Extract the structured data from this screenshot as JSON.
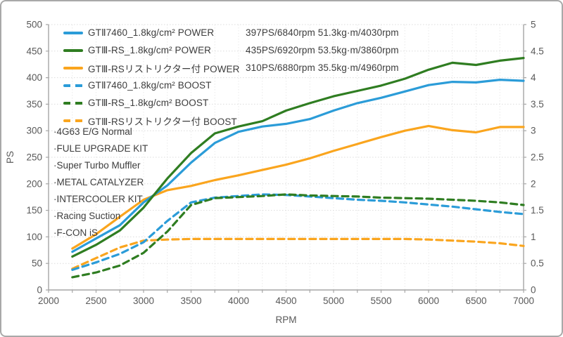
{
  "legend": {
    "items": [
      {
        "label": "GTⅡ7460_1.8kg/cm² POWER",
        "stats": "397PS/6840rpm 51.3kg·m/4030rpm",
        "color": "#2B9CD8",
        "style": "solid"
      },
      {
        "label": "GTⅢ-RS_1.8kg/cm² POWER",
        "stats": "435PS/6920rpm 53.5kg·m/3860rpm",
        "color": "#2F7D21",
        "style": "solid"
      },
      {
        "label": "GTⅢ-RSリストリクター付 POWER",
        "stats": "310PS/6880rpm 35.5kg·m/4960rpm",
        "color": "#FAA51E",
        "style": "solid"
      },
      {
        "label": "GTⅡ7460_1.8kg/cm² BOOST",
        "stats": "",
        "color": "#2B9CD8",
        "style": "dashed"
      },
      {
        "label": "GTⅢ-RS_1.8kg/cm² BOOST",
        "stats": "",
        "color": "#2F7D21",
        "style": "dashed"
      },
      {
        "label": "GTⅢ-RSリストリクター付 BOOST",
        "stats": "",
        "color": "#FAA51E",
        "style": "dashed"
      }
    ]
  },
  "annotations": {
    "items": [
      "·4G63 E/G Normal",
      "·FULE UPGRADE KIT",
      "·Super Turbo Muffler",
      "·METAL CATALYZER",
      "·INTERCOOLER KIT",
      "·Racing Suction",
      "·F-CON iS"
    ]
  },
  "chart_data": {
    "type": "line",
    "title": "",
    "xlabel": "RPM",
    "ylabel_left": "PS",
    "xlim": [
      2000,
      7000
    ],
    "x_tick_step": 500,
    "x_minor_step": 250,
    "ylim_left": [
      0,
      500
    ],
    "y_step_left": 50,
    "ylim_right": [
      0,
      5
    ],
    "y_step_right": 0.5,
    "grid": true,
    "legend_position": "top-left",
    "x": [
      2250,
      2500,
      2750,
      3000,
      3250,
      3500,
      3750,
      4000,
      4250,
      4500,
      4750,
      5000,
      5250,
      5500,
      5750,
      6000,
      6250,
      6500,
      6750,
      7000
    ],
    "series": [
      {
        "id": "gt2-7460-power",
        "name": "GTⅡ7460_1.8kg/cm² POWER",
        "axis": "left",
        "style": "solid",
        "color": "#FAA51E-placeholder",
        "values": []
      },
      {
        "id": "gt3rs-restrictor-power",
        "name": "GTⅢ-RSリストリクター付 POWER",
        "axis": "left",
        "style": "solid",
        "color": "#FAA51E",
        "values": [
          78,
          105,
          138,
          170,
          188,
          196,
          207,
          216,
          226,
          236,
          248,
          262,
          275,
          288,
          300,
          309,
          301,
          297,
          307,
          307
        ]
      },
      {
        "id": "gt2-7460-power-line",
        "name": "GTⅡ7460_1.8kg/cm² POWER",
        "axis": "left",
        "style": "solid",
        "color": "#2B9CD8",
        "values": [
          72,
          97,
          122,
          165,
          197,
          240,
          277,
          298,
          308,
          313,
          322,
          338,
          352,
          362,
          374,
          386,
          392,
          391,
          396,
          394
        ]
      },
      {
        "id": "gt3rs-power-line",
        "name": "GTⅢ-RS_1.8kg/cm² POWER",
        "axis": "left",
        "style": "solid",
        "color": "#2F7D21",
        "values": [
          63,
          85,
          112,
          155,
          210,
          258,
          295,
          308,
          318,
          338,
          352,
          365,
          375,
          385,
          398,
          415,
          428,
          424,
          432,
          437
        ]
      },
      {
        "id": "gt3rs-restrictor-boost",
        "name": "GTⅢ-RSリストリクター付 BOOST",
        "axis": "right",
        "style": "dashed",
        "color": "#FAA51E",
        "values": [
          0.4,
          0.6,
          0.8,
          0.93,
          0.95,
          0.96,
          0.96,
          0.96,
          0.96,
          0.96,
          0.96,
          0.96,
          0.96,
          0.96,
          0.96,
          0.95,
          0.93,
          0.91,
          0.88,
          0.83
        ]
      },
      {
        "id": "gt2-7460-boost",
        "name": "GTⅡ7460_1.8kg/cm² BOOST",
        "axis": "right",
        "style": "dashed",
        "color": "#2B9CD8",
        "values": [
          0.38,
          0.52,
          0.68,
          0.9,
          1.3,
          1.65,
          1.74,
          1.77,
          1.8,
          1.79,
          1.76,
          1.73,
          1.7,
          1.68,
          1.65,
          1.61,
          1.57,
          1.52,
          1.47,
          1.43
        ]
      },
      {
        "id": "gt3rs-boost",
        "name": "GTⅢ-RS_1.8kg/cm² BOOST",
        "axis": "right",
        "style": "dashed",
        "color": "#2F7D21",
        "values": [
          0.24,
          0.33,
          0.46,
          0.7,
          1.1,
          1.6,
          1.73,
          1.75,
          1.77,
          1.8,
          1.78,
          1.77,
          1.76,
          1.74,
          1.73,
          1.72,
          1.7,
          1.68,
          1.65,
          1.6
        ]
      }
    ],
    "peaks": [
      {
        "series": "GTⅡ7460",
        "power": "397PS/6840rpm",
        "torque": "51.3kg·m/4030rpm"
      },
      {
        "series": "GTⅢ-RS",
        "power": "435PS/6920rpm",
        "torque": "53.5kg·m/3860rpm"
      },
      {
        "series": "GTⅢ-RSリストリクター付",
        "power": "310PS/6880rpm",
        "torque": "35.5kg·m/4960rpm"
      }
    ],
    "colors": {
      "axis": "#a6a6a6",
      "grid": "#dcdcdc",
      "grid_minor": "#e9e9e9",
      "tick_text": "#595959"
    }
  }
}
